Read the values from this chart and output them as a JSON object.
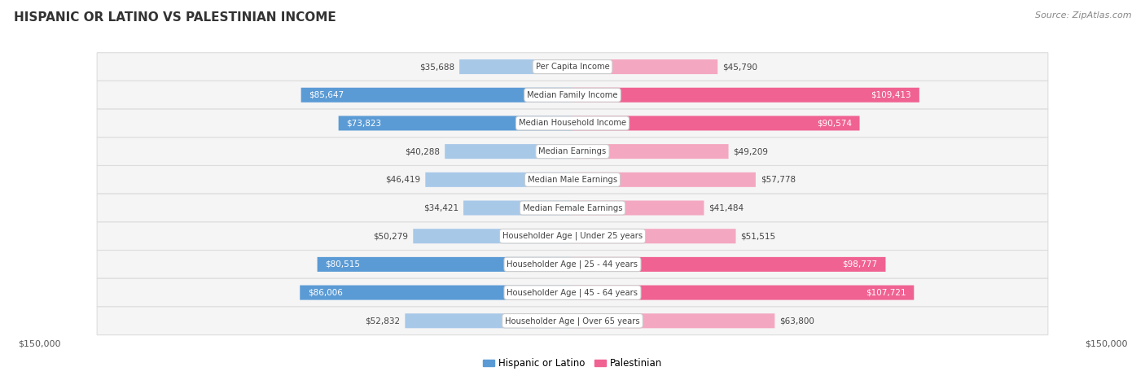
{
  "title": "HISPANIC OR LATINO VS PALESTINIAN INCOME",
  "source": "Source: ZipAtlas.com",
  "categories": [
    "Per Capita Income",
    "Median Family Income",
    "Median Household Income",
    "Median Earnings",
    "Median Male Earnings",
    "Median Female Earnings",
    "Householder Age | Under 25 years",
    "Householder Age | 25 - 44 years",
    "Householder Age | 45 - 64 years",
    "Householder Age | Over 65 years"
  ],
  "hispanic_values": [
    35688,
    85647,
    73823,
    40288,
    46419,
    34421,
    50279,
    80515,
    86006,
    52832
  ],
  "palestinian_values": [
    45790,
    109413,
    90574,
    49209,
    57778,
    41484,
    51515,
    98777,
    107721,
    63800
  ],
  "hispanic_labels": [
    "$35,688",
    "$85,647",
    "$73,823",
    "$40,288",
    "$46,419",
    "$34,421",
    "$50,279",
    "$80,515",
    "$86,006",
    "$52,832"
  ],
  "palestinian_labels": [
    "$45,790",
    "$109,413",
    "$90,574",
    "$49,209",
    "$57,778",
    "$41,484",
    "$51,515",
    "$98,777",
    "$107,721",
    "$63,800"
  ],
  "hispanic_color_light": "#a8c8e8",
  "hispanic_color_dark": "#5b9bd5",
  "palestinian_color_light": "#f4a7c0",
  "palestinian_color_dark": "#f06292",
  "hispanic_dark_indices": [
    1,
    2,
    7,
    8
  ],
  "palestinian_dark_indices": [
    1,
    2,
    7,
    8
  ],
  "axis_max": 150000,
  "background_color": "#ffffff",
  "row_bg_even": "#f0f0f0",
  "row_bg_odd": "#f8f8f8",
  "xlabel_left": "$150,000",
  "xlabel_right": "$150,000",
  "legend_label_hispanic": "Hispanic or Latino",
  "legend_label_palestinian": "Palestinian"
}
